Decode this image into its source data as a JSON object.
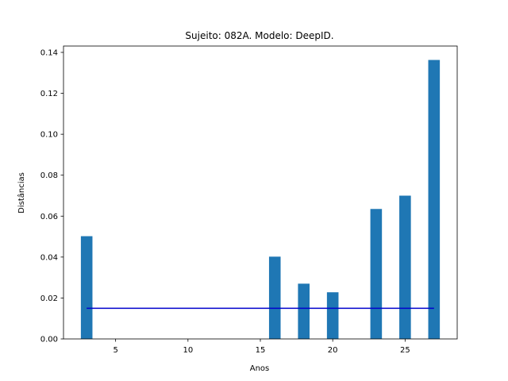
{
  "chart_data": {
    "type": "bar",
    "title": "Sujeito: 082A. Modelo: DeepID.",
    "xlabel": "Anos",
    "ylabel": "Distâncias",
    "x": [
      3,
      16,
      18,
      20,
      23,
      25,
      27
    ],
    "values": [
      0.0502,
      0.0402,
      0.027,
      0.0228,
      0.0635,
      0.07,
      0.1363
    ],
    "bar_width_years": 0.8,
    "bar_color": "#1f77b4",
    "reference_line": {
      "y": 0.015,
      "x_range": [
        3,
        27
      ],
      "color": "#0000cc"
    },
    "xlim": [
      1.4,
      28.6
    ],
    "ylim": [
      0,
      0.1431
    ],
    "xticks": [
      5,
      10,
      15,
      20,
      25
    ],
    "xtick_labels": [
      "5",
      "10",
      "15",
      "20",
      "25"
    ],
    "yticks": [
      0,
      0.02,
      0.04,
      0.06,
      0.08,
      0.1,
      0.12,
      0.14
    ],
    "ytick_labels": [
      "0.00",
      "0.02",
      "0.04",
      "0.06",
      "0.08",
      "0.10",
      "0.12",
      "0.14"
    ],
    "grid": false,
    "legend": "none"
  }
}
